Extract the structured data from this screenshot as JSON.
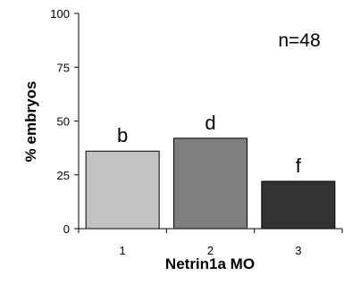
{
  "chart_data": {
    "type": "bar",
    "categories": [
      "1",
      "2",
      "3"
    ],
    "values": [
      36,
      42,
      22
    ],
    "bar_labels": [
      "b",
      "d",
      "f"
    ],
    "bar_colors": [
      "#c2c2c2",
      "#7f7f7f",
      "#333333"
    ],
    "xlabel": "Netrin1a MO",
    "ylabel": "% embryos",
    "ylim": [
      0,
      100
    ],
    "yticks": [
      0,
      25,
      50,
      75,
      100
    ],
    "annotation": "n=48",
    "grid": false,
    "legend": "none"
  }
}
